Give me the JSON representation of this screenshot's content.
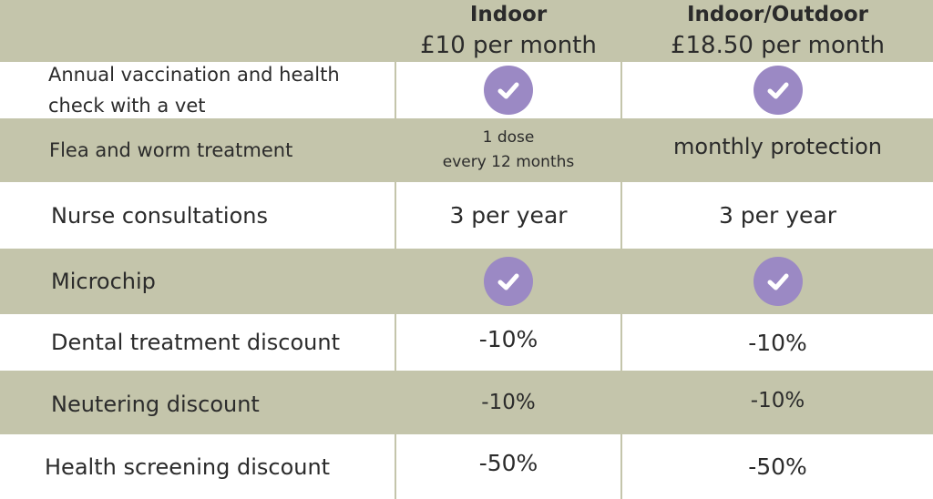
{
  "header": {
    "plans": [
      {
        "name": "Indoor",
        "price": "£10 per month"
      },
      {
        "name": "Indoor/Outdoor",
        "price": "£18.50 per month"
      }
    ]
  },
  "rows": [
    {
      "feature": "Annual vaccination and health check with a vet",
      "indoor": "check-icon",
      "outdoor": "check-icon"
    },
    {
      "feature": "Flea and worm treatment",
      "indoor_line1": "1 dose",
      "indoor_line2": "every 12 months",
      "outdoor": "monthly protection"
    },
    {
      "feature": "Nurse consultations",
      "indoor": "3 per year",
      "outdoor": "3 per year"
    },
    {
      "feature": "Microchip",
      "indoor": "check-icon",
      "outdoor": "check-icon"
    },
    {
      "feature": "Dental treatment discount",
      "indoor": "-10%",
      "outdoor": "-10%"
    },
    {
      "feature": "Neutering discount",
      "indoor": "-10%",
      "outdoor": "-10%"
    },
    {
      "feature": "Health screening discount",
      "indoor": "-50%",
      "outdoor": "-50%"
    }
  ],
  "colors": {
    "olive_background": "#c4c5ab",
    "white_row": "#ffffff",
    "check_circle": "#9b89c4"
  }
}
